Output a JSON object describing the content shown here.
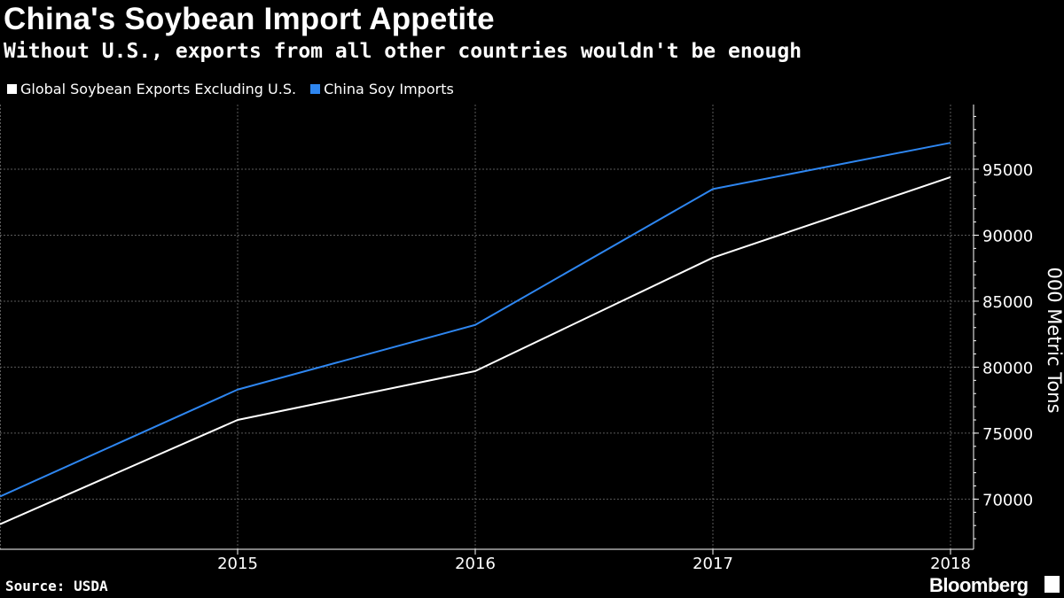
{
  "header": {
    "title": "China's Soybean Import Appetite",
    "subtitle": "Without U.S., exports from all other countries wouldn't be enough"
  },
  "footer": {
    "source": "Source: USDA",
    "brand": "Bloomberg"
  },
  "chart_data": {
    "type": "line",
    "x": [
      2014,
      2015,
      2016,
      2017,
      2018
    ],
    "x_tick_labels": [
      "2015",
      "2016",
      "2017",
      "2018"
    ],
    "series": [
      {
        "name": "Global Soybean Exports Excluding U.S.",
        "color": "#ffffff",
        "values": [
          68100,
          76000,
          79700,
          88300,
          94400
        ]
      },
      {
        "name": "China Soy Imports",
        "color": "#2e86f0",
        "values": [
          70200,
          78300,
          83200,
          93500,
          97000
        ]
      }
    ],
    "ylabel": "000 Metric Tons",
    "y_ticks": [
      70000,
      75000,
      80000,
      85000,
      90000,
      95000
    ],
    "ylim": [
      66200,
      99900
    ],
    "grid": true,
    "legend_position": "top-left"
  }
}
